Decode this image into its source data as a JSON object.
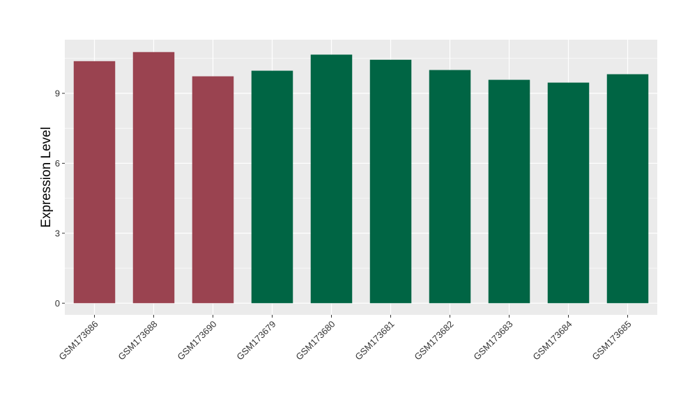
{
  "chart_data": {
    "type": "bar",
    "title": "",
    "xlabel": "",
    "ylabel": "Expression Level",
    "ylim": [
      -0.5,
      11.3
    ],
    "yticks": [
      0,
      3,
      6,
      9
    ],
    "grid": true,
    "legend": "none",
    "categories": [
      "GSM173686",
      "GSM173688",
      "GSM173690",
      "GSM173679",
      "GSM173680",
      "GSM173681",
      "GSM173682",
      "GSM173683",
      "GSM173684",
      "GSM173685"
    ],
    "values": [
      10.38,
      10.77,
      9.73,
      9.97,
      10.66,
      10.44,
      10.0,
      9.58,
      9.46,
      9.82
    ],
    "bar_colors": [
      "#9a4350",
      "#9a4350",
      "#9a4350",
      "#006544",
      "#006544",
      "#006544",
      "#006544",
      "#006544",
      "#006544",
      "#006544"
    ],
    "panel_color": "#ebebeb",
    "grid_color": "#ffffff"
  }
}
